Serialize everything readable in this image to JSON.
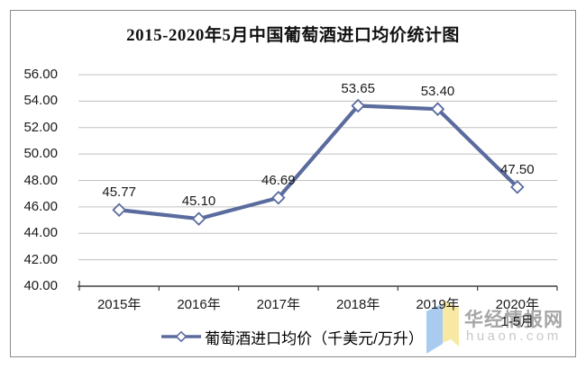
{
  "title": "2015-2020年5月中国葡萄酒进口均价统计图",
  "chart_data": {
    "type": "line",
    "title": "2015-2020年5月中国葡萄酒进口均价统计图",
    "categories": [
      "2015年",
      "2016年",
      "2017年",
      "2018年",
      "2019年",
      "2020年\n1-5月"
    ],
    "series": [
      {
        "name": "葡萄酒进口均价（千美元/万升）",
        "values": [
          45.77,
          45.1,
          46.69,
          53.65,
          53.4,
          47.5
        ]
      }
    ],
    "data_labels": [
      "45.77",
      "45.10",
      "46.69",
      "53.65",
      "53.40",
      "47.50"
    ],
    "y_ticks": [
      "56.00",
      "54.00",
      "52.00",
      "50.00",
      "48.00",
      "46.00",
      "44.00",
      "42.00",
      "40.00"
    ],
    "ylim": [
      40,
      56
    ],
    "ytick_step": 2,
    "grid": "horizontal",
    "legend_position": "bottom",
    "marker": "diamond"
  },
  "legend": {
    "label": "葡萄酒进口均价（千美元/万升）"
  },
  "watermark": {
    "name": "华经情报网",
    "url": "huaon.com"
  },
  "colors": {
    "line": "#5a6b9e",
    "marker_fill": "#ffffff",
    "grid": "#c0c0c0",
    "axis": "#3f3f3f",
    "text": "#1a1a1a",
    "border": "#8a8a8a",
    "watermark_name": "#a6a6a6",
    "watermark_url": "#c8c8c8",
    "logo_blue": "#a9cbf0",
    "logo_yellow": "#f7e9a4"
  }
}
